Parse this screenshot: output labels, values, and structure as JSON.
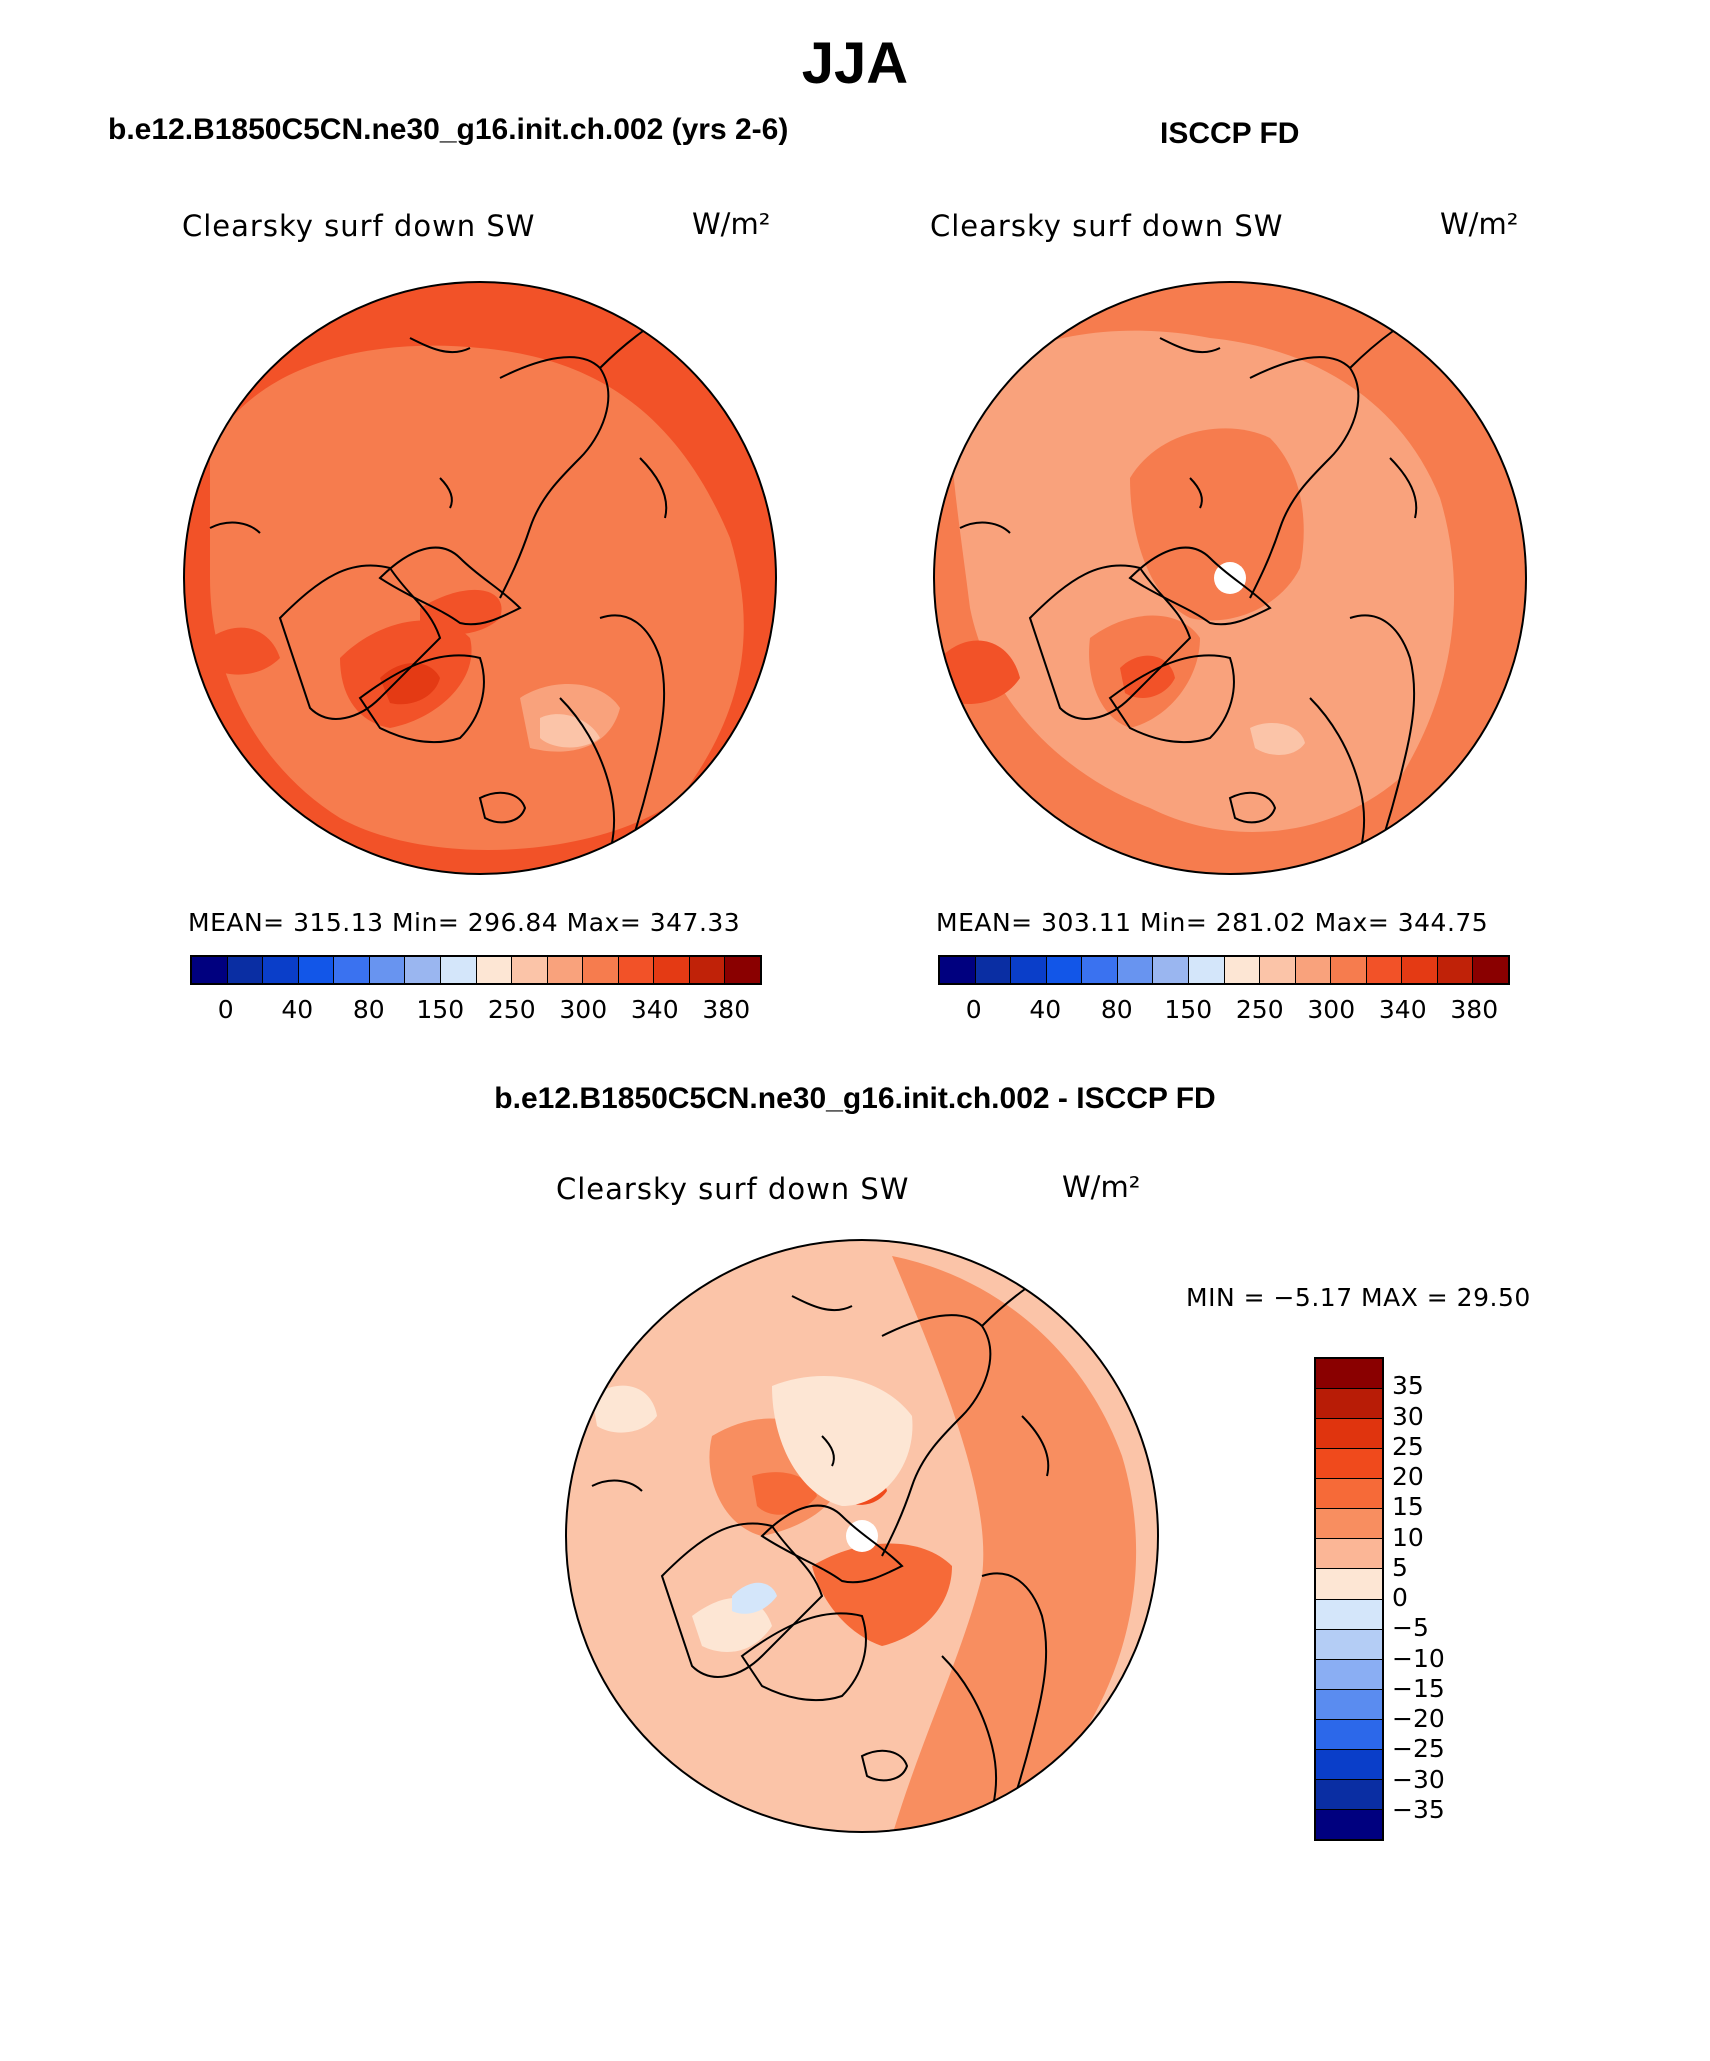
{
  "header": {
    "title": "JJA",
    "model_case": "b.e12.B1850C5CN.ne30_g16.init.ch.002 (yrs 2-6)",
    "obs_case": "ISCCP FD",
    "diff_case": "b.e12.B1850C5CN.ne30_g16.init.ch.002 - ISCCP FD"
  },
  "panels": [
    {
      "variable": "Clearsky surf down SW",
      "units": "W/m²",
      "stats": "MEAN= 315.13   Min= 296.84   Max= 347.33",
      "mean": 315.13,
      "min": 296.84,
      "max": 347.33
    },
    {
      "variable": "Clearsky surf down SW",
      "units": "W/m²",
      "stats": "MEAN= 303.11   Min= 281.02   Max= 344.75",
      "mean": 303.11,
      "min": 281.02,
      "max": 344.75
    },
    {
      "variable": "Clearsky surf down SW",
      "units": "W/m²",
      "stats": "MIN =   −5.17 MAX =   29.50",
      "min": -5.17,
      "max": 29.5
    }
  ],
  "colorbar_abs": {
    "colors": [
      "#00007f",
      "#0a2ea3",
      "#0a3ec9",
      "#1256e8",
      "#3a72f0",
      "#6894f0",
      "#9ab6f0",
      "#d4e6fa",
      "#fde6d4",
      "#fbc4a8",
      "#f9a27c",
      "#f67c4e",
      "#f25228",
      "#e43a14",
      "#c02208",
      "#8a0000"
    ],
    "labels": [
      "0",
      "40",
      "80",
      "150",
      "250",
      "300",
      "340",
      "380"
    ]
  },
  "colorbar_diff": {
    "colors": [
      "#8a0000",
      "#b81c06",
      "#e0340e",
      "#f04a1c",
      "#f66a38",
      "#f88e60",
      "#fbb696",
      "#fde6d4",
      "#d4e6fa",
      "#b4cdf5",
      "#8aaef3",
      "#5a8cf0",
      "#2c68ea",
      "#0a3ec9",
      "#0a2ea3",
      "#00007f"
    ],
    "labels": [
      "35",
      "30",
      "25",
      "20",
      "15",
      "10",
      "5",
      "0",
      "−5",
      "−10",
      "−15",
      "−20",
      "−25",
      "−30",
      "−35"
    ]
  }
}
